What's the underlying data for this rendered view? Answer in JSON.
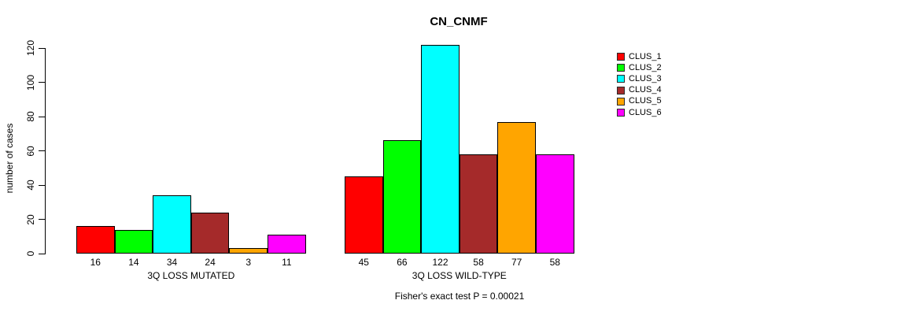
{
  "chart_data": {
    "type": "bar",
    "title": "CN_CNMF",
    "xlabel": "",
    "ylabel": "number of cases",
    "ylim": [
      0,
      120
    ],
    "yticks": [
      0,
      20,
      40,
      60,
      80,
      100,
      120
    ],
    "categories": [
      "3Q LOSS MUTATED",
      "3Q LOSS WILD-TYPE"
    ],
    "series": [
      {
        "name": "CLUS_1",
        "color": "#ff0000",
        "values": [
          16,
          45
        ]
      },
      {
        "name": "CLUS_2",
        "color": "#00ff00",
        "values": [
          14,
          66
        ]
      },
      {
        "name": "CLUS_3",
        "color": "#00ffff",
        "values": [
          34,
          122
        ]
      },
      {
        "name": "CLUS_4",
        "color": "#a52a2a",
        "values": [
          24,
          58
        ]
      },
      {
        "name": "CLUS_5",
        "color": "#ffa500",
        "values": [
          3,
          77
        ]
      },
      {
        "name": "CLUS_6",
        "color": "#ff00ff",
        "values": [
          11,
          58
        ]
      }
    ],
    "bar_value_labels": true,
    "annotation": "Fisher's exact test P = 0.00021",
    "legend_entries": [
      "CLUS_1",
      "CLUS_2",
      "CLUS_3",
      "CLUS_4",
      "CLUS_5",
      "CLUS_6"
    ],
    "legend_position": "right",
    "grid": false,
    "background": "#ffffff"
  }
}
